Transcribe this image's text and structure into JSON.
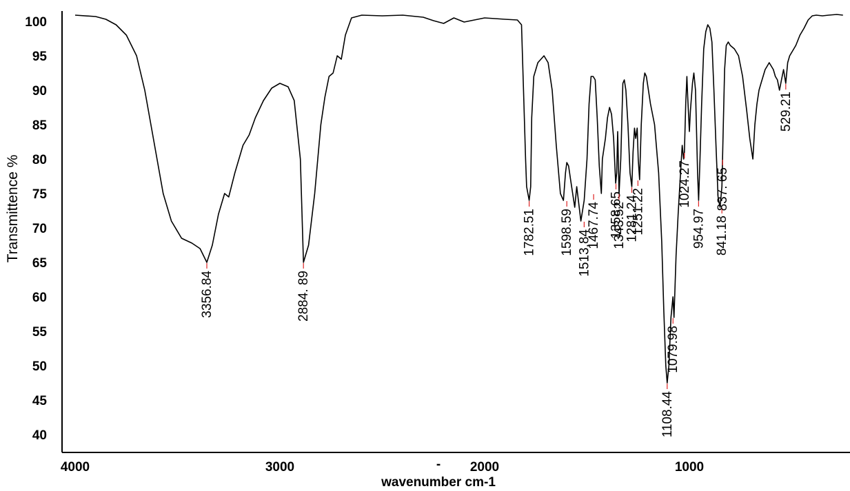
{
  "chart_data": {
    "type": "line",
    "title": "",
    "xlabel": "wavenumber cm-1",
    "ylabel": "Transmittence %",
    "xlim": [
      4000,
      250
    ],
    "ylim": [
      35,
      102
    ],
    "x_ticks": [
      4000,
      3000,
      2000,
      1000
    ],
    "x_tick_labels": [
      "4000",
      "3000",
      "2000",
      "1000"
    ],
    "y_ticks": [
      40,
      45,
      50,
      55,
      60,
      65,
      70,
      75,
      80,
      85,
      90,
      95,
      100
    ],
    "y_tick_labels": [
      "40",
      "45",
      "50",
      "55",
      "60",
      "65",
      "70",
      "75",
      "80",
      "85",
      "90",
      "95",
      "100"
    ],
    "x_axis_center_mark": "-",
    "grid": false,
    "legend": "none",
    "series": [
      {
        "color": "#000000",
        "points": [
          [
            4000,
            100.9
          ],
          [
            3900,
            100.7
          ],
          [
            3850,
            100.3
          ],
          [
            3800,
            99.5
          ],
          [
            3750,
            98.0
          ],
          [
            3700,
            95.0
          ],
          [
            3660,
            90.0
          ],
          [
            3630,
            85.0
          ],
          [
            3600,
            80.0
          ],
          [
            3570,
            75.0
          ],
          [
            3530,
            71.0
          ],
          [
            3480,
            68.5
          ],
          [
            3430,
            67.8
          ],
          [
            3390,
            67.0
          ],
          [
            3356.84,
            65.0
          ],
          [
            3330,
            67.5
          ],
          [
            3300,
            72.0
          ],
          [
            3270,
            75.0
          ],
          [
            3250,
            74.5
          ],
          [
            3220,
            78.0
          ],
          [
            3180,
            82.0
          ],
          [
            3150,
            83.5
          ],
          [
            3120,
            86.0
          ],
          [
            3080,
            88.5
          ],
          [
            3040,
            90.3
          ],
          [
            3000,
            91.0
          ],
          [
            2960,
            90.5
          ],
          [
            2930,
            88.5
          ],
          [
            2900,
            80.0
          ],
          [
            2884.89,
            65.0
          ],
          [
            2860,
            67.5
          ],
          [
            2830,
            75.0
          ],
          [
            2800,
            85.0
          ],
          [
            2780,
            89.0
          ],
          [
            2760,
            92.0
          ],
          [
            2740,
            92.5
          ],
          [
            2720,
            95.0
          ],
          [
            2700,
            94.5
          ],
          [
            2680,
            98.0
          ],
          [
            2650,
            100.5
          ],
          [
            2600,
            100.9
          ],
          [
            2500,
            100.8
          ],
          [
            2400,
            100.9
          ],
          [
            2300,
            100.6
          ],
          [
            2250,
            100.1
          ],
          [
            2200,
            99.7
          ],
          [
            2150,
            100.5
          ],
          [
            2100,
            99.9
          ],
          [
            2000,
            100.5
          ],
          [
            1900,
            100.3
          ],
          [
            1840,
            100.2
          ],
          [
            1820,
            99.5
          ],
          [
            1810,
            90.0
          ],
          [
            1800,
            80.0
          ],
          [
            1795,
            76.0
          ],
          [
            1782.51,
            74.0
          ],
          [
            1775,
            76.0
          ],
          [
            1770,
            86.0
          ],
          [
            1760,
            92.0
          ],
          [
            1740,
            94.0
          ],
          [
            1710,
            95.0
          ],
          [
            1690,
            94.0
          ],
          [
            1670,
            90.0
          ],
          [
            1650,
            82.0
          ],
          [
            1630,
            75.0
          ],
          [
            1615,
            74.0
          ],
          [
            1605,
            78.0
          ],
          [
            1598.59,
            79.5
          ],
          [
            1590,
            79.0
          ],
          [
            1580,
            77.0
          ],
          [
            1570,
            75.0
          ],
          [
            1560,
            73.0
          ],
          [
            1550,
            76.0
          ],
          [
            1530,
            71.0
          ],
          [
            1513.84,
            74.0
          ],
          [
            1500,
            80.0
          ],
          [
            1490,
            88.0
          ],
          [
            1480,
            92.0
          ],
          [
            1470,
            92.0
          ],
          [
            1460,
            91.5
          ],
          [
            1450,
            86.0
          ],
          [
            1440,
            79.0
          ],
          [
            1430,
            75.0
          ],
          [
            1425,
            80.0
          ],
          [
            1410,
            83.0
          ],
          [
            1400,
            86.0
          ],
          [
            1390,
            87.5
          ],
          [
            1380,
            86.5
          ],
          [
            1370,
            83.0
          ],
          [
            1360,
            76.5
          ],
          [
            1355,
            78.0
          ],
          [
            1350,
            84.0
          ],
          [
            1343.52,
            75.0
          ],
          [
            1335,
            80.0
          ],
          [
            1325,
            91.0
          ],
          [
            1318,
            91.5
          ],
          [
            1310,
            90.0
          ],
          [
            1300,
            85.0
          ],
          [
            1290,
            78.0
          ],
          [
            1281.24,
            76.0
          ],
          [
            1275,
            81.0
          ],
          [
            1268,
            84.5
          ],
          [
            1262,
            83.0
          ],
          [
            1255,
            84.5
          ],
          [
            1250,
            80.0
          ],
          [
            1243,
            77.0
          ],
          [
            1235,
            85.0
          ],
          [
            1225,
            91.0
          ],
          [
            1218,
            92.5
          ],
          [
            1210,
            92.0
          ],
          [
            1200,
            90.0
          ],
          [
            1190,
            88.0
          ],
          [
            1170,
            85.0
          ],
          [
            1150,
            78.0
          ],
          [
            1135,
            68.0
          ],
          [
            1125,
            58.0
          ],
          [
            1115,
            50.0
          ],
          [
            1108.44,
            47.5
          ],
          [
            1100,
            50.0
          ],
          [
            1090,
            57.0
          ],
          [
            1079.98,
            60.0
          ],
          [
            1075,
            57.0
          ],
          [
            1065,
            66.0
          ],
          [
            1055,
            72.0
          ],
          [
            1045,
            77.0
          ],
          [
            1035,
            82.0
          ],
          [
            1028,
            80.0
          ],
          [
            1024.27,
            81.0
          ],
          [
            1018,
            88.0
          ],
          [
            1012,
            92.0
          ],
          [
            1008,
            89.0
          ],
          [
            1000,
            84.0
          ],
          [
            995,
            87.0
          ],
          [
            985,
            91.0
          ],
          [
            978,
            92.5
          ],
          [
            970,
            90.0
          ],
          [
            960,
            78.0
          ],
          [
            954.97,
            74.0
          ],
          [
            948,
            80.0
          ],
          [
            940,
            88.0
          ],
          [
            930,
            96.0
          ],
          [
            920,
            98.5
          ],
          [
            910,
            99.5
          ],
          [
            900,
            99.0
          ],
          [
            890,
            97.0
          ],
          [
            880,
            90.0
          ],
          [
            870,
            82.0
          ],
          [
            860,
            74.5
          ],
          [
            850,
            73.0
          ],
          [
            841.18,
            76.0
          ],
          [
            835,
            84.0
          ],
          [
            828,
            93.0
          ],
          [
            820,
            96.5
          ],
          [
            810,
            97.0
          ],
          [
            800,
            96.5
          ],
          [
            780,
            96.0
          ],
          [
            760,
            95.0
          ],
          [
            740,
            92.0
          ],
          [
            720,
            87.0
          ],
          [
            705,
            83.0
          ],
          [
            700,
            82.0
          ],
          [
            690,
            80.0
          ],
          [
            680,
            85.0
          ],
          [
            670,
            88.0
          ],
          [
            660,
            90.0
          ],
          [
            650,
            91.0
          ],
          [
            640,
            92.0
          ],
          [
            630,
            93.0
          ],
          [
            620,
            93.5
          ],
          [
            610,
            94.0
          ],
          [
            600,
            93.5
          ],
          [
            590,
            93.0
          ],
          [
            580,
            92.0
          ],
          [
            570,
            91.5
          ],
          [
            560,
            90.0
          ],
          [
            550,
            91.5
          ],
          [
            540,
            93.0
          ],
          [
            529.21,
            91.0
          ],
          [
            520,
            94.0
          ],
          [
            510,
            95.0
          ],
          [
            500,
            95.5
          ],
          [
            480,
            96.5
          ],
          [
            460,
            98.0
          ],
          [
            440,
            99.0
          ],
          [
            420,
            100.2
          ],
          [
            400,
            100.8
          ],
          [
            380,
            100.9
          ],
          [
            350,
            100.8
          ],
          [
            320,
            100.9
          ],
          [
            280,
            101.0
          ],
          [
            250,
            100.9
          ]
        ]
      }
    ],
    "peak_labels": [
      {
        "x": 3356.84,
        "y": 65.0,
        "text": "3356.84"
      },
      {
        "x": 2884.89,
        "y": 65.0,
        "text": "2884. 89"
      },
      {
        "x": 1782.51,
        "y": 74.0,
        "text": "1782.51"
      },
      {
        "x": 1598.59,
        "y": 74.0,
        "text": "1598.59"
      },
      {
        "x": 1513.84,
        "y": 71.0,
        "text": "1513.84"
      },
      {
        "x": 1467.74,
        "y": 75.0,
        "text": "1467.74"
      },
      {
        "x": 1358.65,
        "y": 76.5,
        "text": "1358.65"
      },
      {
        "x": 1343.52,
        "y": 75.0,
        "text": "1343.52"
      },
      {
        "x": 1281.24,
        "y": 76.0,
        "text": "1281.24"
      },
      {
        "x": 1251.22,
        "y": 77.0,
        "text": "1251.22"
      },
      {
        "x": 1108.44,
        "y": 47.5,
        "text": "1108.44"
      },
      {
        "x": 1079.98,
        "y": 57.0,
        "text": "1079.98"
      },
      {
        "x": 1024.27,
        "y": 81.0,
        "text": "1024.27"
      },
      {
        "x": 954.97,
        "y": 74.0,
        "text": "954.97"
      },
      {
        "x": 841.18,
        "y": 73.0,
        "text": "841.18"
      },
      {
        "x": 837.65,
        "y": 80.0,
        "text": "837. 65"
      },
      {
        "x": 529.21,
        "y": 91.0,
        "text": "529.21"
      }
    ]
  }
}
